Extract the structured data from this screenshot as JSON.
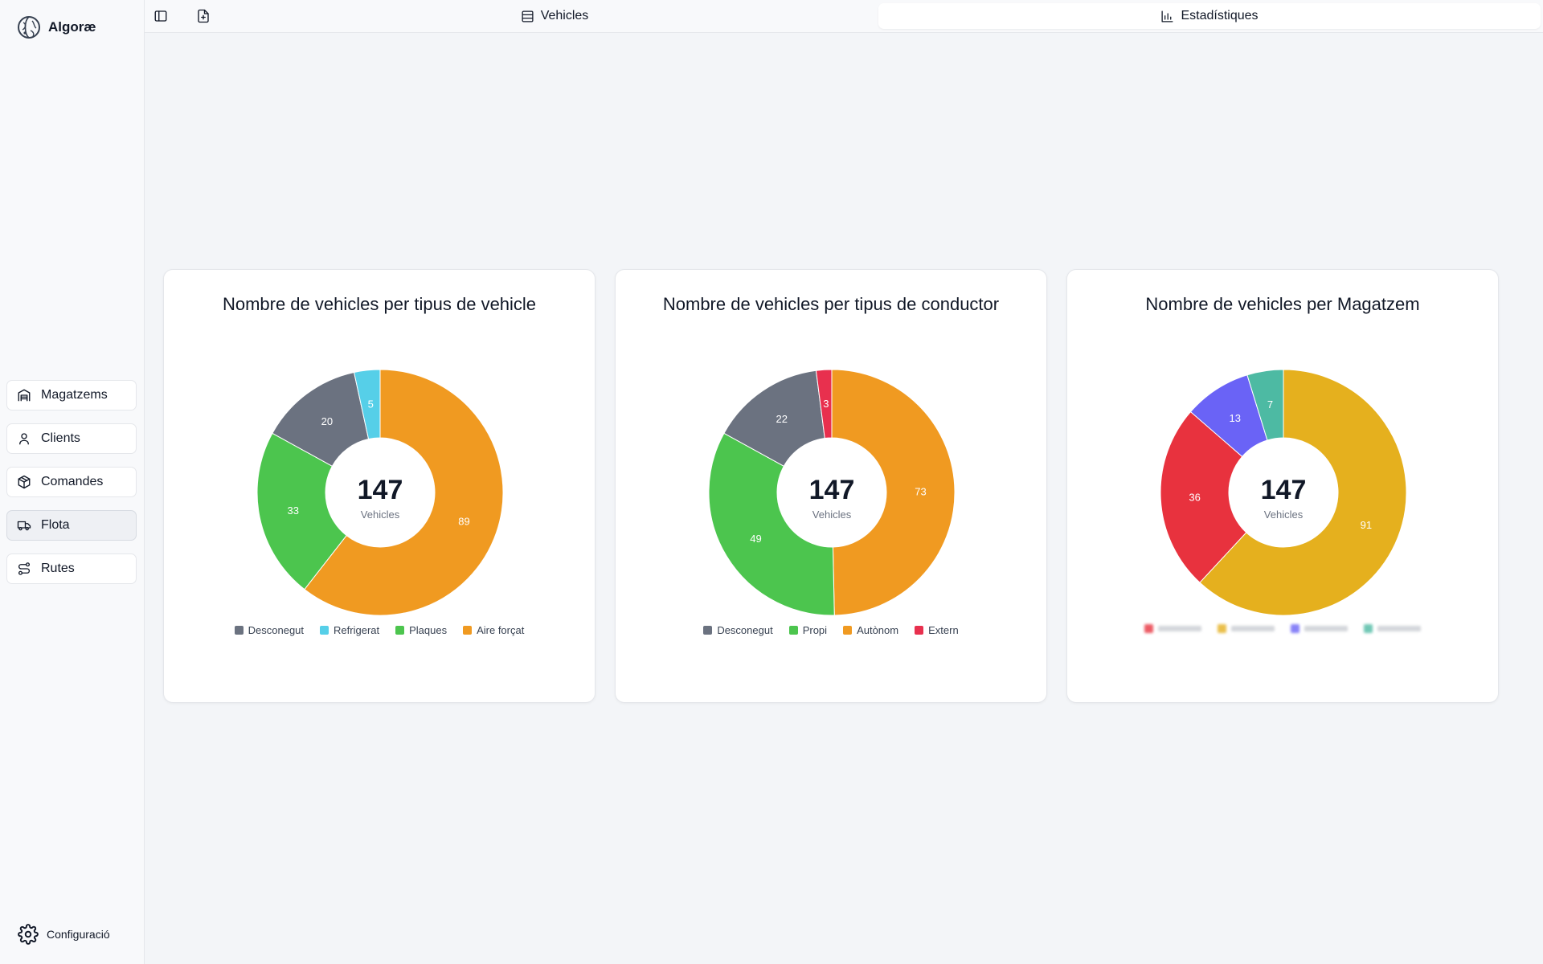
{
  "app": {
    "name": "Algoræ"
  },
  "sidebar": {
    "items": [
      {
        "label": "Magatzems",
        "icon": "warehouse-icon",
        "active": false
      },
      {
        "label": "Clients",
        "icon": "user-icon",
        "active": false
      },
      {
        "label": "Comandes",
        "icon": "package-icon",
        "active": false
      },
      {
        "label": "Flota",
        "icon": "truck-icon",
        "active": true
      },
      {
        "label": "Rutes",
        "icon": "route-icon",
        "active": false
      }
    ],
    "settings_label": "Configuració"
  },
  "topbar": {
    "icons": [
      "sidebar-toggle-icon",
      "file-plus-icon"
    ],
    "tabs": [
      {
        "label": "Vehicles",
        "icon": "table-icon",
        "active": false
      },
      {
        "label": "Estadístiques",
        "icon": "chart-icon",
        "active": true
      }
    ]
  },
  "chart_data": [
    {
      "type": "pie",
      "title": "Nombre de vehicles per tipus de vehicle",
      "center_value": "147",
      "center_label": "Vehicles",
      "categories": [
        "Desconegut",
        "Refrigerat",
        "Plaques",
        "Aire forçat"
      ],
      "values": [
        20,
        5,
        33,
        89
      ],
      "colors": [
        "#6b7280",
        "#56cfe8",
        "#4cc54e",
        "#f09a21"
      ],
      "slice_order": [
        3,
        2,
        0,
        1
      ],
      "legend_position": "bottom"
    },
    {
      "type": "pie",
      "title": "Nombre de vehicles per tipus de conductor",
      "center_value": "147",
      "center_label": "Vehicles",
      "categories": [
        "Desconegut",
        "Propi",
        "Autònom",
        "Extern"
      ],
      "values": [
        22,
        49,
        73,
        3
      ],
      "colors": [
        "#6b7280",
        "#4cc54e",
        "#f09a21",
        "#e8304e"
      ],
      "slice_order": [
        2,
        1,
        0,
        3
      ],
      "legend_position": "bottom"
    },
    {
      "type": "pie",
      "title": "Nombre de vehicles per Magatzem",
      "center_value": "147",
      "center_label": "Vehicles",
      "categories": [
        "",
        "",
        "",
        ""
      ],
      "values": [
        36,
        91,
        13,
        7
      ],
      "colors": [
        "#e8323e",
        "#e5b01e",
        "#6a63f6",
        "#4dbaa3"
      ],
      "slice_order": [
        1,
        0,
        2,
        3
      ],
      "legend_position": "bottom",
      "legend_blurred": true
    }
  ]
}
